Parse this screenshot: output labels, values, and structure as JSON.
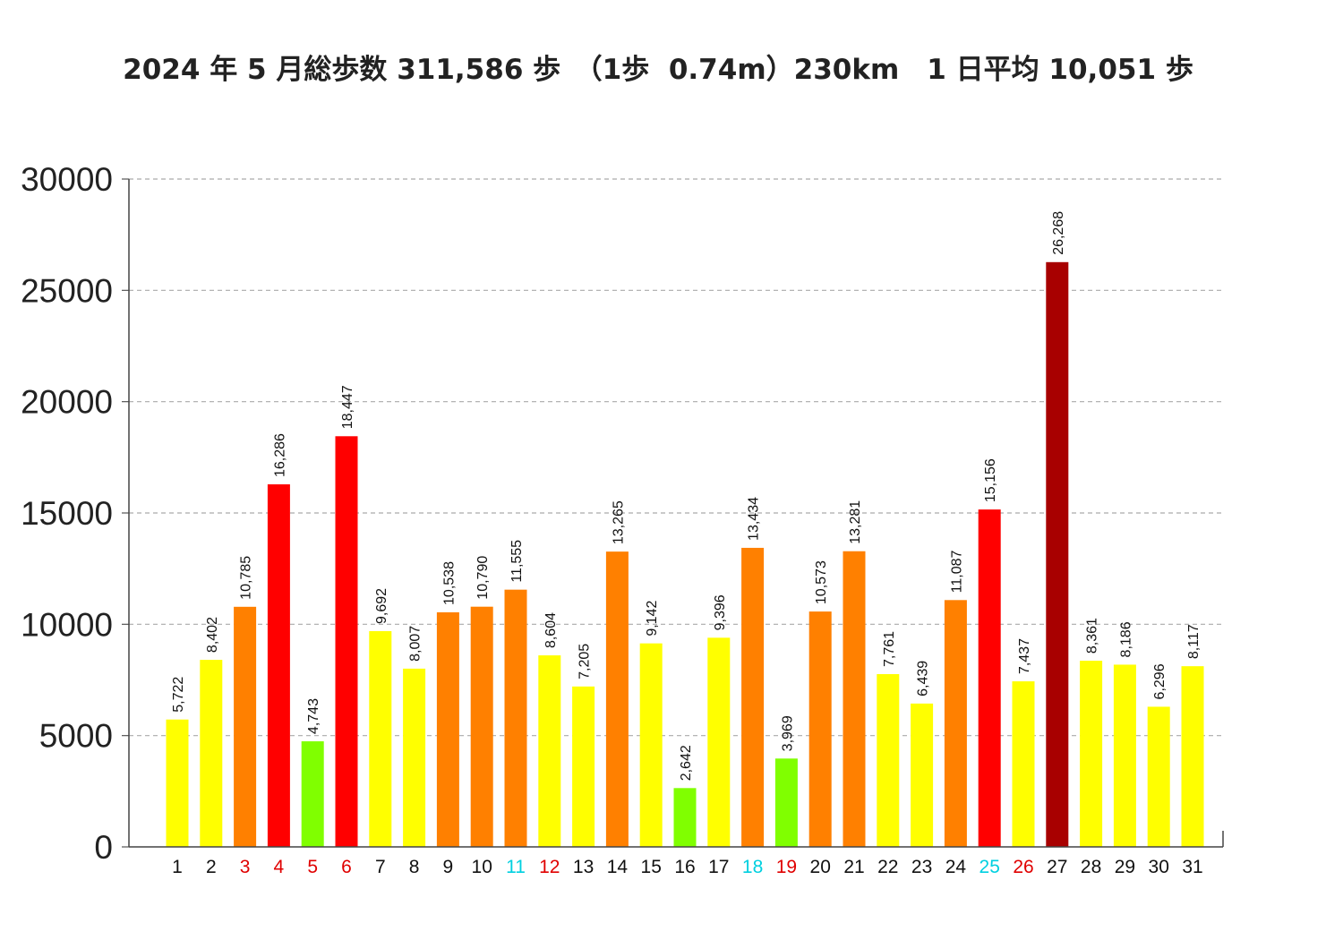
{
  "chart_data": {
    "type": "bar",
    "title": "2024 年 5 月総歩数 311,586 歩　（1歩  0.74m）230km　1 日平均 10,051 歩",
    "xlabel": "",
    "ylabel": "",
    "ylim": [
      0,
      30000
    ],
    "yticks": [
      "0",
      "5000",
      "10000",
      "15000",
      "20000",
      "25000",
      "30000"
    ],
    "grid": "horizontal-dashed",
    "categories": [
      "1",
      "2",
      "3",
      "4",
      "5",
      "6",
      "7",
      "8",
      "9",
      "10",
      "11",
      "12",
      "13",
      "14",
      "15",
      "16",
      "17",
      "18",
      "19",
      "20",
      "21",
      "22",
      "23",
      "24",
      "25",
      "26",
      "27",
      "28",
      "29",
      "30",
      "31"
    ],
    "values": [
      5722,
      8402,
      10785,
      16286,
      4743,
      18447,
      9692,
      8007,
      10538,
      10790,
      11555,
      8604,
      7205,
      13265,
      9142,
      2642,
      9396,
      13434,
      3969,
      10573,
      13281,
      7761,
      6439,
      11087,
      15156,
      7437,
      26268,
      8361,
      8186,
      6296,
      8117
    ],
    "value_labels": [
      "5,722",
      "8,402",
      "10,785",
      "16,286",
      "4,743",
      "18,447",
      "9,692",
      "8,007",
      "10,538",
      "10,790",
      "11,555",
      "8,604",
      "7,205",
      "13,265",
      "9,142",
      "2,642",
      "9,396",
      "13,434",
      "3,969",
      "10,573",
      "13,281",
      "7,761",
      "6,439",
      "11,087",
      "15,156",
      "7,437",
      "26,268",
      "8,361",
      "8,186",
      "6,296",
      "8,117"
    ],
    "bar_colors": [
      "#ffff00",
      "#ffff00",
      "#ff8000",
      "#ff0000",
      "#80ff00",
      "#ff0000",
      "#ffff00",
      "#ffff00",
      "#ff8000",
      "#ff8000",
      "#ff8000",
      "#ffff00",
      "#ffff00",
      "#ff8000",
      "#ffff00",
      "#80ff00",
      "#ffff00",
      "#ff8000",
      "#80ff00",
      "#ff8000",
      "#ff8000",
      "#ffff00",
      "#ffff00",
      "#ff8000",
      "#ff0000",
      "#ffff00",
      "#a80000",
      "#ffff00",
      "#ffff00",
      "#ffff00",
      "#ffff00"
    ],
    "label_colors": [
      "#111111",
      "#111111",
      "#e00000",
      "#e00000",
      "#e00000",
      "#e00000",
      "#111111",
      "#111111",
      "#111111",
      "#111111",
      "#00d0e0",
      "#e00000",
      "#111111",
      "#111111",
      "#111111",
      "#111111",
      "#111111",
      "#00d0e0",
      "#e00000",
      "#111111",
      "#111111",
      "#111111",
      "#111111",
      "#111111",
      "#00d0e0",
      "#e00000",
      "#111111",
      "#111111",
      "#111111",
      "#111111",
      "#111111"
    ]
  }
}
